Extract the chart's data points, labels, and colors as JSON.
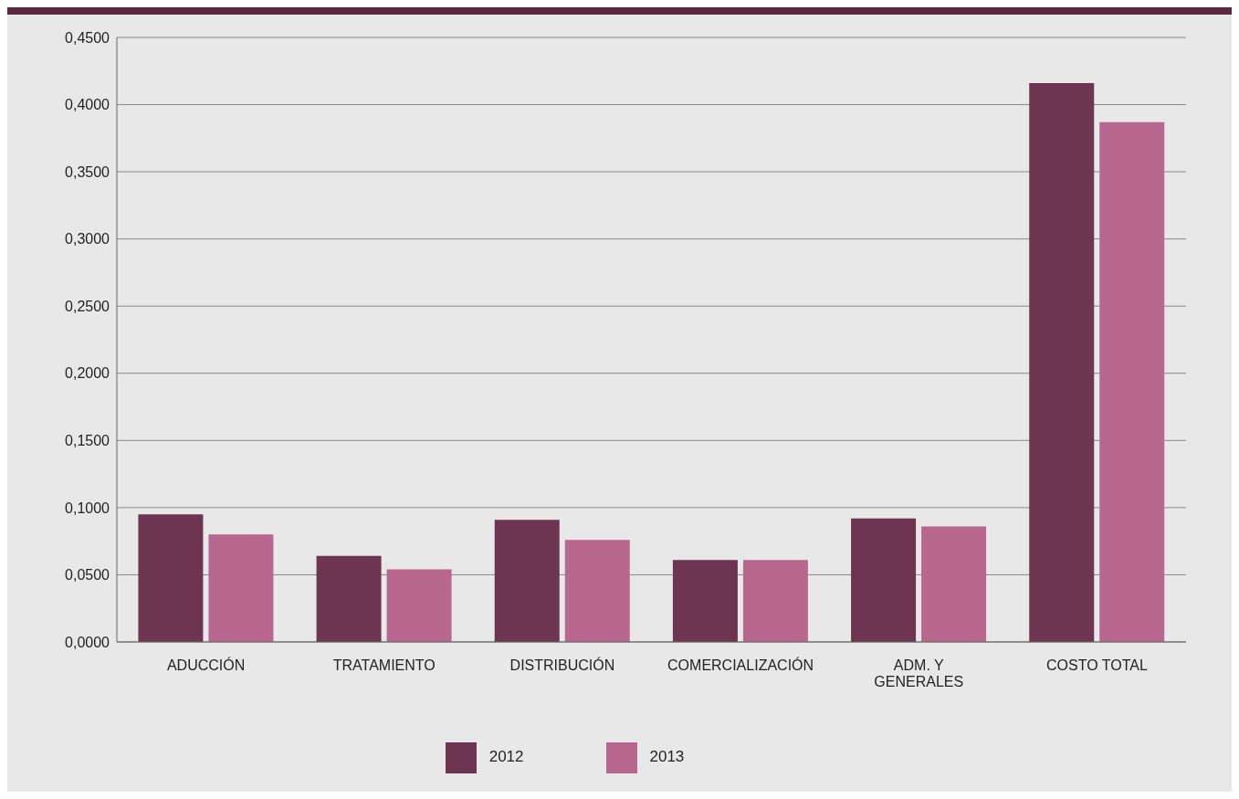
{
  "chart_data": {
    "type": "bar",
    "categories": [
      "ADUCCIÓN",
      "TRATAMIENTO",
      "DISTRIBUCIÓN",
      "COMERCIALIZACIÓN",
      "ADM. Y GENERALES",
      "COSTO TOTAL"
    ],
    "series": [
      {
        "name": "2012",
        "color": "#6e3552",
        "values": [
          0.095,
          0.064,
          0.091,
          0.061,
          0.092,
          0.416
        ]
      },
      {
        "name": "2013",
        "color": "#b8688f",
        "values": [
          0.08,
          0.054,
          0.076,
          0.061,
          0.086,
          0.387
        ]
      }
    ],
    "ylim": [
      0,
      0.45
    ],
    "yticks": [
      {
        "value": 0,
        "label": "0,0000"
      },
      {
        "value": 0.05,
        "label": "0,0500"
      },
      {
        "value": 0.1,
        "label": "0,1000"
      },
      {
        "value": 0.15,
        "label": "0,1500"
      },
      {
        "value": 0.2,
        "label": "0,2000"
      },
      {
        "value": 0.25,
        "label": "0,2500"
      },
      {
        "value": 0.3,
        "label": "0,3000"
      },
      {
        "value": 0.35,
        "label": "0,3500"
      },
      {
        "value": 0.4,
        "label": "0,4000"
      },
      {
        "value": 0.45,
        "label": "0,4500"
      }
    ],
    "grid": "y",
    "legend": "bottom"
  }
}
